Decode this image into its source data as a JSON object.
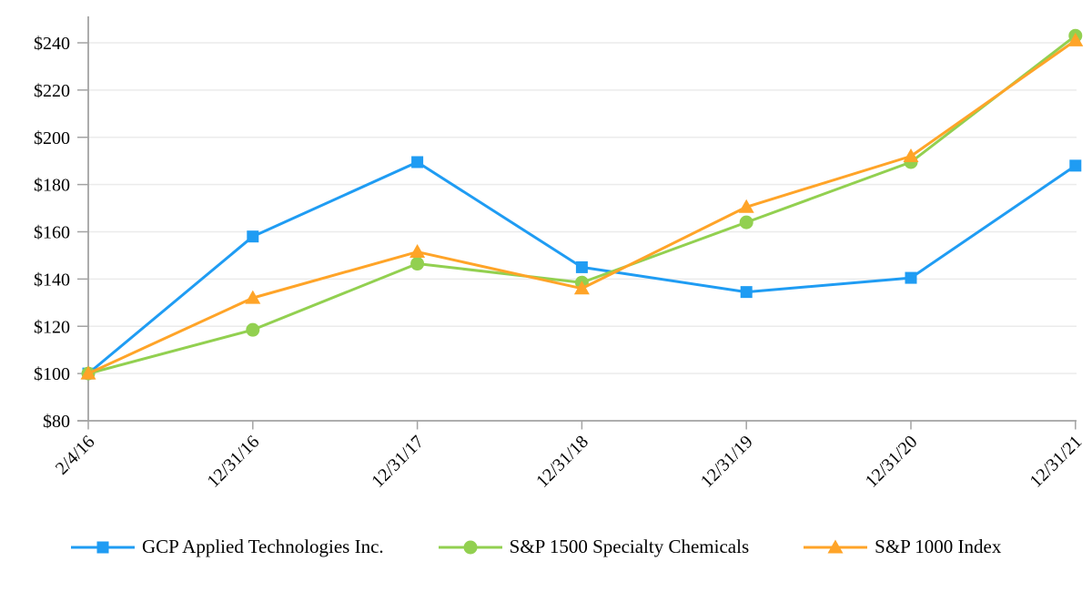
{
  "figure": {
    "background": "#ffffff",
    "title": ""
  },
  "chart_data": {
    "type": "line",
    "title": "",
    "xlabel": "",
    "ylabel": "",
    "categories": [
      "2/4/16",
      "12/31/16",
      "12/31/17",
      "12/31/18",
      "12/31/19",
      "12/31/20",
      "12/31/21"
    ],
    "series": [
      {
        "name": "GCP Applied Technologies Inc.",
        "color": "#1F9CF3",
        "marker": "square",
        "values": [
          100,
          158,
          189.5,
          145,
          134.5,
          140.5,
          188
        ]
      },
      {
        "name": "S&P 1500 Specialty Chemicals",
        "color": "#92D050",
        "marker": "circle",
        "values": [
          100,
          118.5,
          146.5,
          138.5,
          164,
          189.5,
          243
        ]
      },
      {
        "name": "S&P 1000 Index",
        "color": "#FFA428",
        "marker": "triangle",
        "values": [
          100,
          132,
          151.5,
          136,
          170.5,
          192,
          241
        ]
      }
    ],
    "ylim": [
      80,
      240
    ],
    "ytick_step": 20,
    "ytick_prefix": "$",
    "ytick_labels": [
      "$80",
      "$100",
      "$120",
      "$140",
      "$160",
      "$180",
      "$200",
      "$220",
      "$240"
    ],
    "grid": true,
    "legend_position": "bottom",
    "axis_color": "#a3a3a3",
    "grid_color": "#ebebeb",
    "label_color": "#000000"
  }
}
